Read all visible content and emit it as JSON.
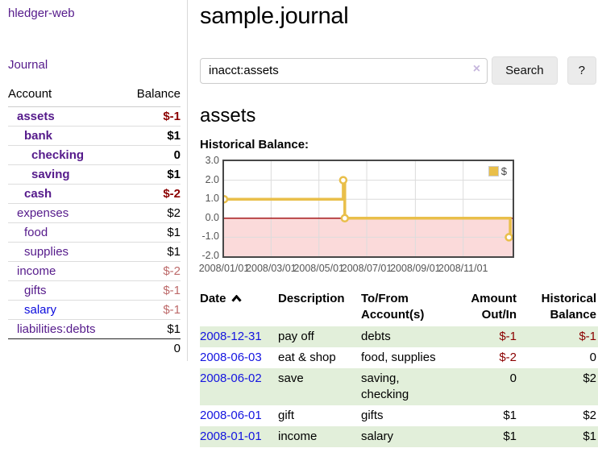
{
  "sidebar": {
    "app_title": "hledger-web",
    "journal_link": "Journal",
    "accounts_header": {
      "account": "Account",
      "balance": "Balance"
    },
    "accounts": [
      {
        "name": "assets",
        "indent": 1,
        "bold": true,
        "balance": "$-1",
        "negative": "strong"
      },
      {
        "name": "bank",
        "indent": 2,
        "bold": true,
        "balance": "$1"
      },
      {
        "name": "checking",
        "indent": 3,
        "bold": true,
        "balance": "0"
      },
      {
        "name": "saving",
        "indent": 3,
        "bold": true,
        "balance": "$1"
      },
      {
        "name": "cash",
        "indent": 2,
        "bold": true,
        "balance": "$-2",
        "negative": "strong"
      },
      {
        "name": "expenses",
        "indent": 1,
        "bold": false,
        "balance": "$2"
      },
      {
        "name": "food",
        "indent": 2,
        "bold": false,
        "balance": "$1"
      },
      {
        "name": "supplies",
        "indent": 2,
        "bold": false,
        "balance": "$1"
      },
      {
        "name": "income",
        "indent": 1,
        "bold": false,
        "balance": "$-2",
        "negative": "soft"
      },
      {
        "name": "gifts",
        "indent": 2,
        "bold": false,
        "balance": "$-1",
        "negative": "soft"
      },
      {
        "name": "salary",
        "indent": 2,
        "bold": false,
        "balance": "$-1",
        "negative": "soft",
        "link_style": "unvisited"
      },
      {
        "name": "liabilities:debts",
        "indent": 1,
        "bold": false,
        "balance": "$1"
      }
    ],
    "total": "0"
  },
  "header": {
    "title": "sample.journal"
  },
  "search": {
    "query": "inacct:assets",
    "clear_icon": "×",
    "button": "Search",
    "help_button": "?"
  },
  "account_page": {
    "heading": "assets",
    "chart_label": "Historical Balance:"
  },
  "chart_data": {
    "type": "line",
    "step": true,
    "title": "Historical Balance:",
    "legend": [
      {
        "name": "$",
        "color": "#e9bf4a"
      }
    ],
    "legend_position": "top-right",
    "grid": true,
    "ylim": [
      -2,
      3
    ],
    "xlim_days": [
      0,
      368
    ],
    "y_ticks": [
      {
        "label": "3.0",
        "value": 3
      },
      {
        "label": "2.0",
        "value": 2
      },
      {
        "label": "1.0",
        "value": 1
      },
      {
        "label": "0.0",
        "value": 0
      },
      {
        "label": "-1.0",
        "value": -1
      },
      {
        "label": "-2.0",
        "value": -2
      }
    ],
    "x_ticks": [
      {
        "label": "2008/01/01",
        "day": 0
      },
      {
        "label": "2008/03/01",
        "day": 60
      },
      {
        "label": "2008/05/01",
        "day": 121
      },
      {
        "label": "2008/07/01",
        "day": 182
      },
      {
        "label": "2008/09/01",
        "day": 244
      },
      {
        "label": "2008/11/01",
        "day": 305
      }
    ],
    "balance_points": [
      {
        "date": "2008-01-01",
        "balance": 1
      },
      {
        "date": "2008-06-01",
        "balance": 2
      },
      {
        "date": "2008-06-03",
        "balance": 0
      },
      {
        "date": "2008-12-31",
        "balance": -1
      }
    ],
    "line_days": [
      [
        0,
        1
      ],
      [
        152,
        1
      ],
      [
        152,
        2
      ],
      [
        154,
        2
      ],
      [
        154,
        0
      ],
      [
        365,
        0
      ],
      [
        365,
        -1
      ]
    ],
    "marker_days": [
      [
        0,
        1
      ],
      [
        152,
        2
      ],
      [
        154,
        0
      ],
      [
        365,
        -1
      ]
    ],
    "negative_region_fill": "#fbdada",
    "zero_line_color": "#9e0508",
    "series_color": "#e9bf4a",
    "grid_color": "#dcdcdc",
    "border_color": "#474747"
  },
  "register": {
    "columns": [
      {
        "line1": "Date",
        "line2": "",
        "align": "left",
        "sorted": true
      },
      {
        "line1": "Description",
        "line2": "",
        "align": "left"
      },
      {
        "line1": "To/From",
        "line2": "Account(s)",
        "align": "left"
      },
      {
        "line1": "Amount",
        "line2": "Out/In",
        "align": "right"
      },
      {
        "line1": "Historical",
        "line2": "Balance",
        "align": "right"
      }
    ],
    "rows": [
      {
        "date": "2008-12-31",
        "description": "pay off",
        "accounts": "debts",
        "amount": "$-1",
        "amount_neg": true,
        "balance": "$-1",
        "balance_neg": true,
        "shaded": true
      },
      {
        "date": "2008-06-03",
        "description": "eat & shop",
        "accounts": "food, supplies",
        "amount": "$-2",
        "amount_neg": true,
        "balance": "0",
        "balance_neg": false,
        "shaded": false
      },
      {
        "date": "2008-06-02",
        "description": "save",
        "accounts": "saving, checking",
        "amount": "0",
        "amount_neg": false,
        "balance": "$2",
        "balance_neg": false,
        "shaded": true
      },
      {
        "date": "2008-06-01",
        "description": "gift",
        "accounts": "gifts",
        "amount": "$1",
        "amount_neg": false,
        "balance": "$2",
        "balance_neg": false,
        "shaded": false
      },
      {
        "date": "2008-01-01",
        "description": "income",
        "accounts": "salary",
        "amount": "$1",
        "amount_neg": false,
        "balance": "$1",
        "balance_neg": false,
        "shaded": true
      }
    ]
  },
  "colors": {
    "link_purple": "#551a8b",
    "link_blue": "#0b0bdd",
    "negative_strong": "#8b0000",
    "negative_soft": "#bd6a6a",
    "row_green": "#e2efda",
    "chart_gold": "#e9bf4a",
    "chart_pink": "#fbdada"
  }
}
